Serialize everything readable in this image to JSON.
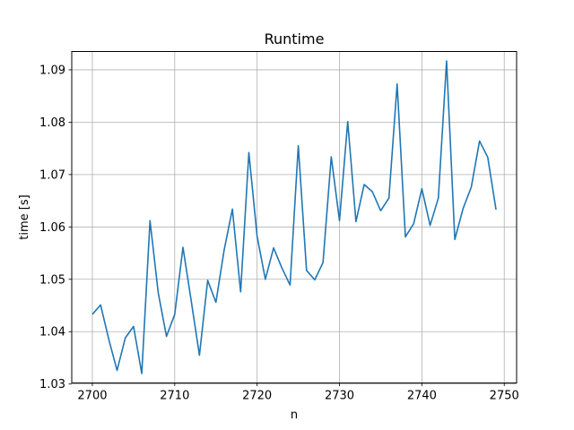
{
  "chart_data": {
    "type": "line",
    "title": "Runtime",
    "xlabel": "n",
    "ylabel": "time [s]",
    "xlim": [
      2697.5,
      2751.5
    ],
    "ylim": [
      1.0302,
      1.0935
    ],
    "grid": true,
    "x_ticks": [
      2700,
      2710,
      2720,
      2730,
      2740,
      2750
    ],
    "y_ticks": [
      1.03,
      1.04,
      1.05,
      1.06,
      1.07,
      1.08,
      1.09
    ],
    "x_tick_labels": [
      "2700",
      "2710",
      "2720",
      "2730",
      "2740",
      "2750"
    ],
    "y_tick_labels": [
      "1.03",
      "1.04",
      "1.05",
      "1.06",
      "1.07",
      "1.08",
      "1.09"
    ],
    "series": [
      {
        "color": "#1f77b4",
        "x": [
          2700,
          2701,
          2702,
          2703,
          2704,
          2705,
          2706,
          2707,
          2708,
          2709,
          2710,
          2711,
          2712,
          2713,
          2714,
          2715,
          2716,
          2717,
          2718,
          2719,
          2720,
          2721,
          2722,
          2723,
          2724,
          2725,
          2726,
          2727,
          2728,
          2729,
          2730,
          2731,
          2732,
          2733,
          2734,
          2735,
          2736,
          2737,
          2738,
          2739,
          2740,
          2741,
          2742,
          2743,
          2744,
          2745,
          2746,
          2747,
          2748,
          2749
        ],
        "values": [
          1.0433,
          1.0451,
          1.0385,
          1.0326,
          1.0388,
          1.041,
          1.032,
          1.0612,
          1.0474,
          1.0391,
          1.0433,
          1.0561,
          1.0459,
          1.0355,
          1.0498,
          1.0456,
          1.0556,
          1.0634,
          1.0476,
          1.0742,
          1.0582,
          1.05,
          1.056,
          1.0522,
          1.0489,
          1.0755,
          1.0517,
          1.0499,
          1.0532,
          1.0734,
          1.0612,
          1.0801,
          1.061,
          1.0681,
          1.0667,
          1.0631,
          1.0655,
          1.0873,
          1.0581,
          1.0606,
          1.0673,
          1.0603,
          1.0655,
          1.0917,
          1.0576,
          1.0635,
          1.0676,
          1.0764,
          1.0733,
          1.0633
        ]
      }
    ]
  }
}
